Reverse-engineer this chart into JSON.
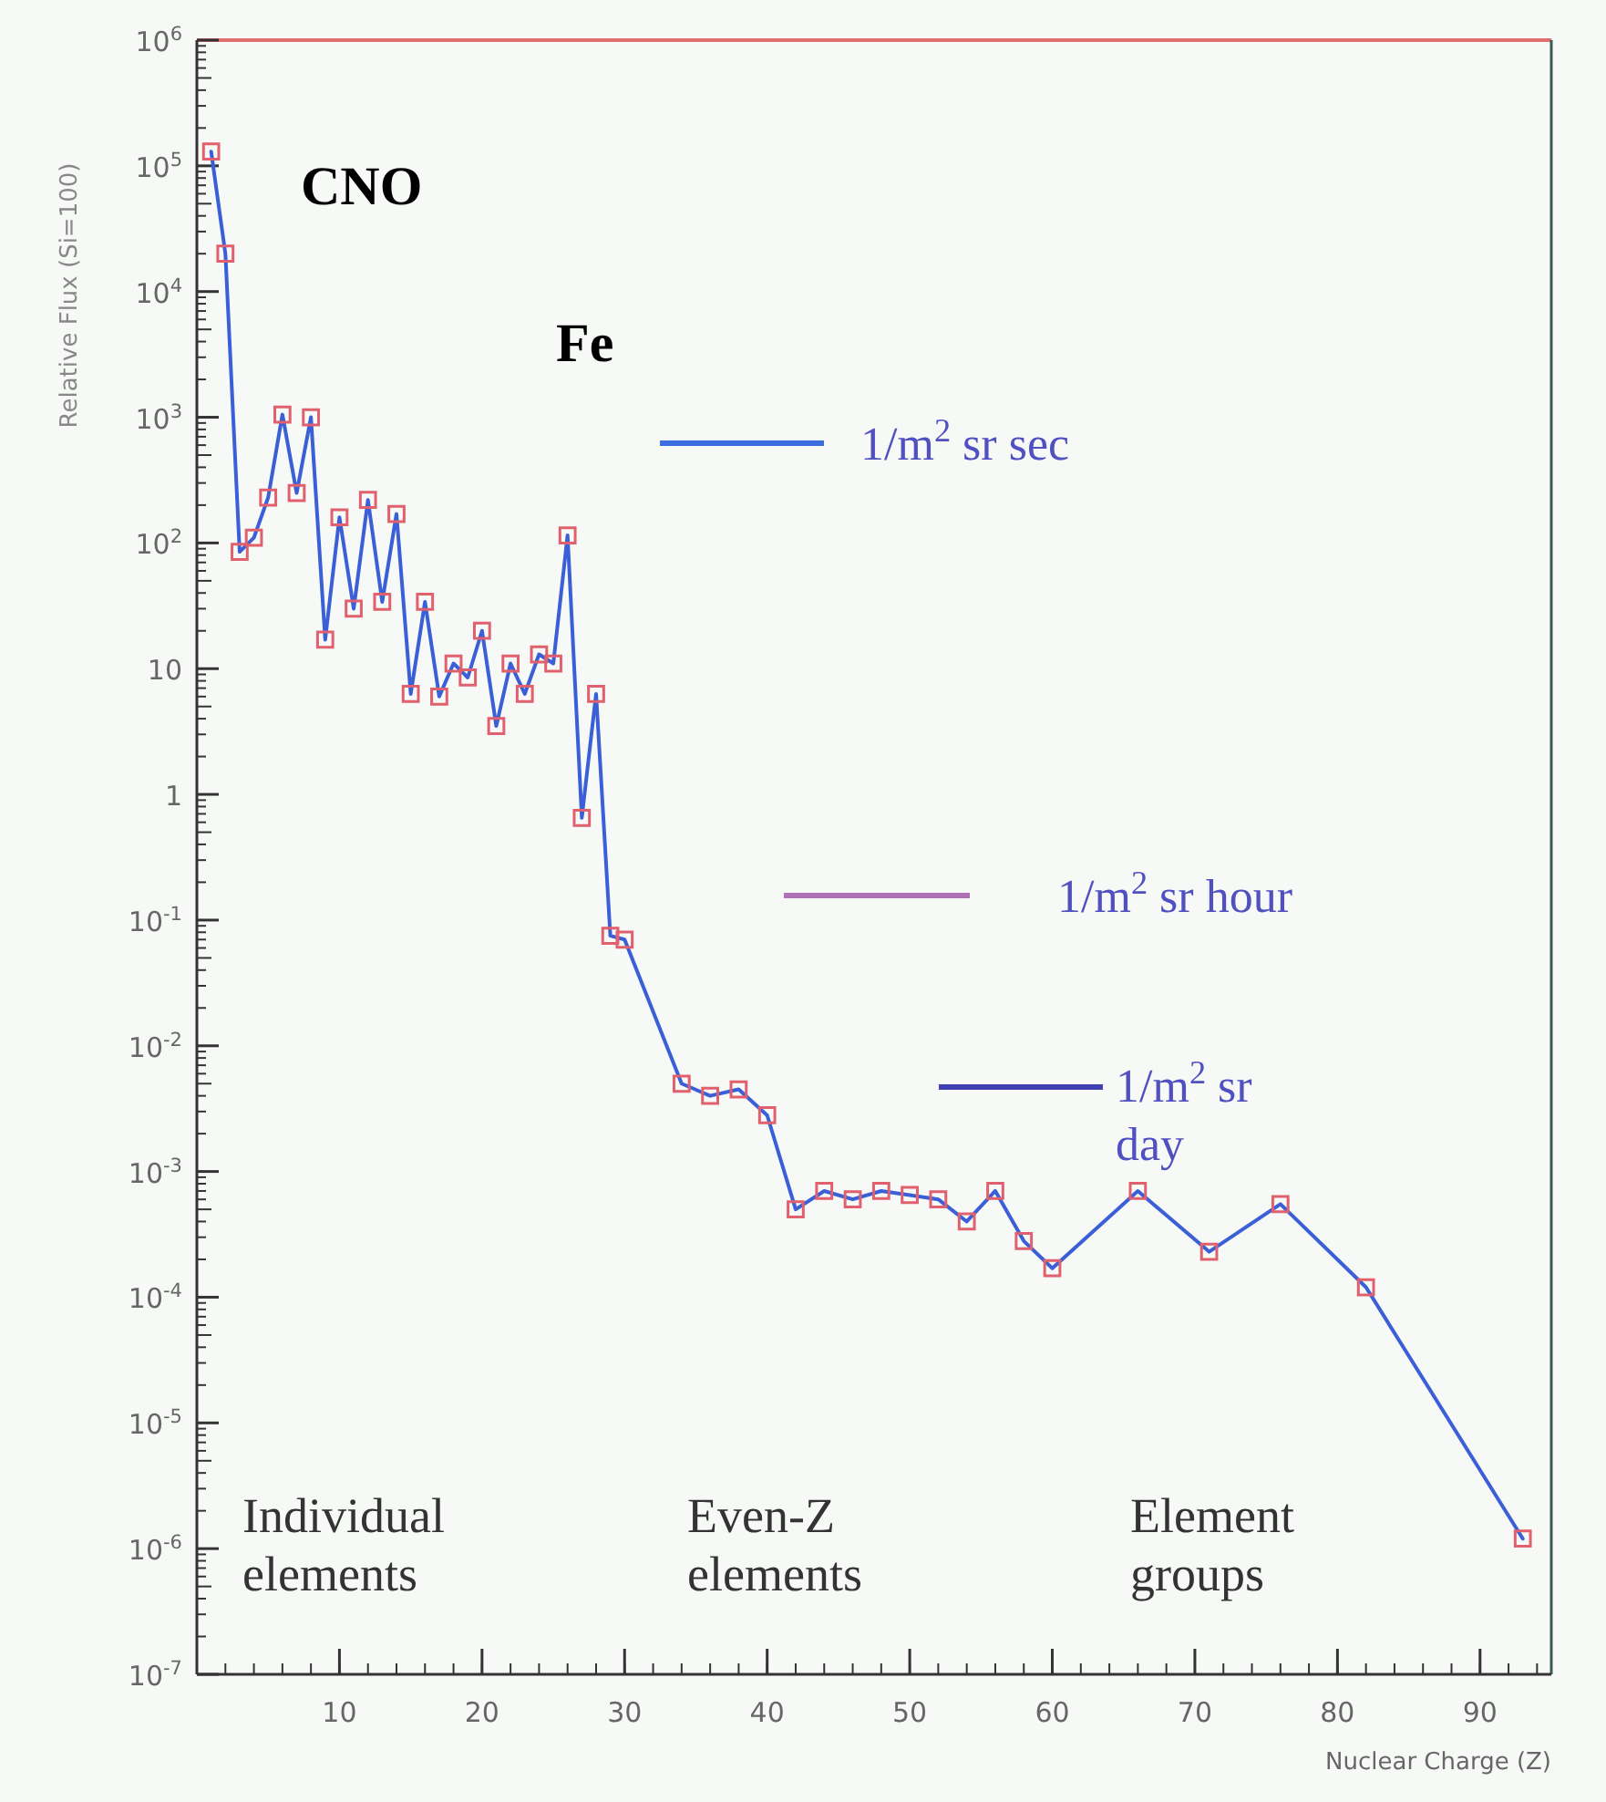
{
  "chart_data": {
    "type": "line",
    "xlabel": "Nuclear Charge (Z)",
    "ylabel": "Relative Flux (Si=100)",
    "log": "y",
    "marker": "square",
    "line_style": "solid",
    "grid": false,
    "xlim": [
      0,
      95
    ],
    "xticks": [
      10,
      20,
      30,
      40,
      50,
      60,
      70,
      80,
      90
    ],
    "ylim": [
      1e-07,
      1000000.0
    ],
    "yticks": [
      {
        "value": 1e-07,
        "label": "10$^{-7}$"
      },
      {
        "value": 1e-06,
        "label": "10$^{-6}$"
      },
      {
        "value": 1e-05,
        "label": "10$^{-5}$"
      },
      {
        "value": 0.0001,
        "label": "10$^{-4}$"
      },
      {
        "value": 0.001,
        "label": "10$^{-3}$"
      },
      {
        "value": 0.01,
        "label": "10$^{-2}$"
      },
      {
        "value": 0.1,
        "label": "10$^{-1}$"
      },
      1,
      10,
      {
        "value": 100,
        "label": "10$^{2}$"
      },
      {
        "value": 1000,
        "label": "10$^{3}$"
      },
      {
        "value": 10000,
        "label": "10$^{4}$"
      },
      {
        "value": 100000,
        "label": "10$^{5}$"
      },
      {
        "value": 1000000,
        "label": "10$^{6}$"
      }
    ],
    "series": [
      {
        "color": "#3b5fd6",
        "x": [
          1,
          2,
          3,
          4,
          5,
          6,
          7,
          8,
          9,
          10,
          11,
          12,
          13,
          14,
          15,
          16,
          17,
          18,
          19,
          20,
          21,
          22,
          23,
          24,
          25,
          26,
          27,
          28,
          29,
          30,
          34,
          36,
          38,
          40,
          42,
          44,
          46,
          48,
          50,
          52,
          54,
          56,
          58,
          60,
          66,
          71,
          76,
          82,
          93
        ],
        "values": [
          130000,
          20000,
          85,
          110,
          230,
          1050,
          250,
          1000,
          17,
          160,
          30,
          220,
          34,
          170,
          6.3,
          34,
          6,
          11,
          8.5,
          20,
          3.5,
          11,
          6.3,
          13,
          11,
          115,
          0.65,
          6.3,
          0.075,
          0.07,
          0.005,
          0.004,
          0.0045,
          0.0028,
          0.0005,
          0.0007,
          0.0006,
          0.0007,
          0.00065,
          0.0006,
          0.0004,
          0.0007,
          0.00028,
          0.00017,
          0.0007,
          0.00023,
          0.00055,
          0.00012,
          1.2e-06
        ]
      }
    ],
    "annotations": [
      "CNO",
      "Fe",
      "1/m$^{2}$ sr sec",
      "1/m$^{2}$ sr hour",
      "1/m$^{2}$ sr day",
      "Individual elements",
      "Even-Z elements",
      "Element groups"
    ]
  }
}
